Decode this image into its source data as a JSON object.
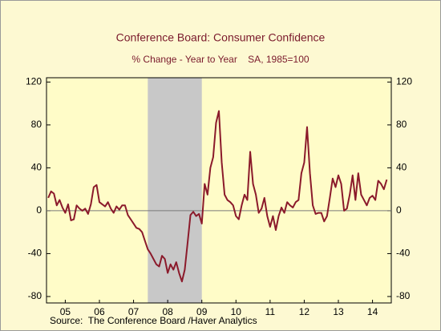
{
  "chart_data": {
    "type": "line",
    "title": "Conference Board: Consumer Confidence",
    "subtitle": "% Change - Year to Year    SA, 1985=100",
    "source": "Source:  The Conference Board /Haver Analytics",
    "recession": [
      2007.917,
      2009.5
    ],
    "x": [
      2005,
      2005.083,
      2005.167,
      2005.25,
      2005.333,
      2005.417,
      2005.5,
      2005.583,
      2005.667,
      2005.75,
      2005.833,
      2005.917,
      2006,
      2006.083,
      2006.167,
      2006.25,
      2006.333,
      2006.417,
      2006.5,
      2006.583,
      2006.667,
      2006.75,
      2006.833,
      2006.917,
      2007,
      2007.083,
      2007.167,
      2007.25,
      2007.333,
      2007.417,
      2007.5,
      2007.583,
      2007.667,
      2007.75,
      2007.833,
      2007.917,
      2008,
      2008.083,
      2008.167,
      2008.25,
      2008.333,
      2008.417,
      2008.5,
      2008.583,
      2008.667,
      2008.75,
      2008.833,
      2008.917,
      2009,
      2009.083,
      2009.167,
      2009.25,
      2009.333,
      2009.417,
      2009.5,
      2009.583,
      2009.667,
      2009.75,
      2009.833,
      2009.917,
      2010,
      2010.083,
      2010.167,
      2010.25,
      2010.333,
      2010.417,
      2010.5,
      2010.583,
      2010.667,
      2010.75,
      2010.833,
      2010.917,
      2011,
      2011.083,
      2011.167,
      2011.25,
      2011.333,
      2011.417,
      2011.5,
      2011.583,
      2011.667,
      2011.75,
      2011.833,
      2011.917,
      2012,
      2012.083,
      2012.167,
      2012.25,
      2012.333,
      2012.417,
      2012.5,
      2012.583,
      2012.667,
      2012.75,
      2012.833,
      2012.917,
      2013,
      2013.083,
      2013.167,
      2013.25,
      2013.333,
      2013.417,
      2013.5,
      2013.583,
      2013.667,
      2013.75,
      2013.833,
      2013.917,
      2014,
      2014.083,
      2014.167,
      2014.25,
      2014.333,
      2014.417,
      2014.5,
      2014.583,
      2014.667,
      2014.75,
      2014.833,
      2014.917
    ],
    "series": [
      {
        "name": "Consumer Confidence",
        "color": "#8b1a2b",
        "values": [
          12,
          18,
          16,
          5,
          10,
          3,
          -2,
          6,
          -9,
          -8,
          5,
          2,
          0,
          2,
          -3,
          6,
          22,
          24,
          8,
          6,
          4,
          8,
          2,
          -2,
          4,
          1,
          5,
          5,
          -4,
          -8,
          -12,
          -16,
          -17,
          -20,
          -28,
          -36,
          -40,
          -45,
          -50,
          -52,
          -42,
          -45,
          -58,
          -50,
          -55,
          -48,
          -58,
          -66,
          -55,
          -30,
          -4,
          -1,
          -5,
          -3,
          -12,
          25,
          15,
          40,
          50,
          82,
          93,
          45,
          15,
          10,
          8,
          5,
          -5,
          -8,
          5,
          15,
          10,
          55,
          25,
          15,
          -2,
          2,
          12,
          -5,
          -15,
          -5,
          -18,
          -5,
          3,
          -2,
          8,
          5,
          3,
          8,
          10,
          35,
          45,
          78,
          35,
          5,
          -3,
          -2,
          -2,
          -10,
          -5,
          12,
          30,
          22,
          33,
          25,
          0,
          2,
          15,
          33,
          10,
          35,
          15,
          10,
          5,
          12,
          14,
          10,
          28,
          25,
          20,
          29
        ]
      }
    ],
    "xlim": [
      2004.95,
      2015.05
    ],
    "xticks": [
      {
        "value": 2005.5,
        "label": "05"
      },
      {
        "value": 2006.5,
        "label": "06"
      },
      {
        "value": 2007.5,
        "label": "07"
      },
      {
        "value": 2008.5,
        "label": "08"
      },
      {
        "value": 2009.5,
        "label": "09"
      },
      {
        "value": 2010.5,
        "label": "10"
      },
      {
        "value": 2011.5,
        "label": "11"
      },
      {
        "value": 2012.5,
        "label": "12"
      },
      {
        "value": 2013.5,
        "label": "13"
      },
      {
        "value": 2014.5,
        "label": "14"
      }
    ],
    "ylim": [
      -86,
      124
    ],
    "yticks": [
      -80,
      -40,
      0,
      40,
      80,
      120
    ],
    "zero_line": true
  }
}
